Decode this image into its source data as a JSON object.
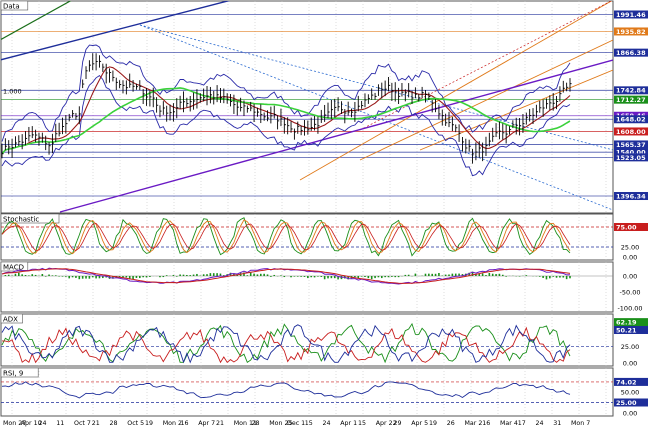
{
  "chart_data": [
    {
      "type": "line",
      "panel": "price",
      "title": "Data",
      "series": [],
      "left_tick": "1.000",
      "price_tags": [
        {
          "label": "1991.46",
          "color": "#1e2e9a"
        },
        {
          "label": "1935.82",
          "color": "#e07a1a"
        },
        {
          "label": "1866.38",
          "color": "#1e2e9a"
        },
        {
          "label": "1742.84",
          "color": "#1e2e9a"
        },
        {
          "label": "1712.27",
          "color": "#1a8f1a"
        },
        {
          "label": "1659.46",
          "color": "#6a1ac4"
        },
        {
          "label": "1648.02",
          "color": "#1e2e9a"
        },
        {
          "label": "1608.00",
          "color": "#c81e1e"
        },
        {
          "label": "1565.37",
          "color": "#1e2e9a"
        },
        {
          "label": "1540.00",
          "color": "#1e2e9a"
        },
        {
          "label": "1523.05",
          "color": "#1e2e9a"
        },
        {
          "label": "1396.34",
          "color": "#1e2e9a"
        }
      ]
    },
    {
      "type": "line",
      "panel": "stochastic",
      "title": "Stochastic",
      "series": [],
      "y_ticks": [
        "75.00",
        "25.00",
        "0.00"
      ],
      "value_tags": [
        {
          "label": "75.00",
          "color": "#c81e1e"
        }
      ]
    },
    {
      "type": "bar",
      "panel": "macd",
      "title": "MACD",
      "series": [],
      "y_ticks": [
        "0.00",
        "-50.00",
        "-100.00"
      ]
    },
    {
      "type": "line",
      "panel": "adx",
      "title": "ADX",
      "series": [],
      "y_ticks": [
        "50.21",
        "25.00",
        "0.00"
      ],
      "value_tags": [
        {
          "label": "62.19",
          "color": "#1a8f1a"
        },
        {
          "label": "50.21",
          "color": "#1e2e9a"
        }
      ]
    },
    {
      "type": "line",
      "panel": "rsi",
      "title": "RSI, 9",
      "series": [],
      "y_ticks": [
        "50.00",
        "0.00"
      ],
      "value_tags": [
        {
          "label": "74.02",
          "color": "#1e2e9a"
        },
        {
          "label": "25.00",
          "color": "#1e2e9a"
        }
      ]
    }
  ],
  "x_axis_labels": [
    "Mon 27",
    "Apr 10",
    "24",
    "11",
    "Oct 7",
    "21",
    "28",
    "Oct 5",
    "19",
    "Mon 2",
    "16",
    "Apr 7",
    "21",
    "Mon 11",
    "28",
    "Mon 25",
    "Dec 1",
    "15",
    "24",
    "Apr 1",
    "15",
    "Apr 22",
    "29",
    "Apr 5",
    "19",
    "26",
    "Mar 2",
    "16",
    "Mar 4",
    "17",
    "24",
    "31",
    "Mon 7"
  ]
}
